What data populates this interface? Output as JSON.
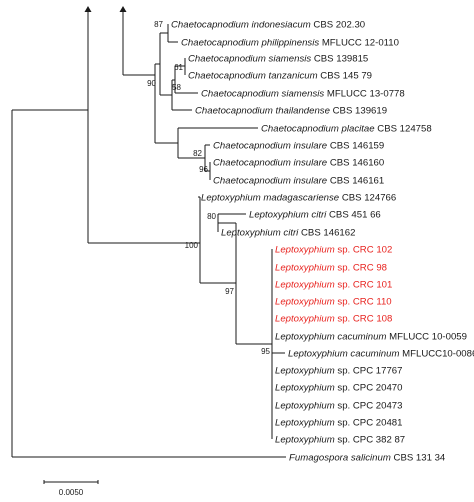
{
  "colors": {
    "line": "#1a1a1a",
    "text": "#1a1a1a",
    "highlight": "#e8231f"
  },
  "taxa": [
    {
      "id": "t01",
      "species": "Chaetocapnodium indonesiacum",
      "voucher": "CBS 202.30",
      "highlight": false
    },
    {
      "id": "t02",
      "species": "Chaetocapnodium philippinensis",
      "voucher": "MFLUCC 12-0110",
      "highlight": false
    },
    {
      "id": "t03",
      "species": "Chaetocapnodium siamensis",
      "voucher": "CBS 139815",
      "highlight": false
    },
    {
      "id": "t04",
      "species": "Chaetocapnodium tanzanicum",
      "voucher": "CBS 145 79",
      "highlight": false
    },
    {
      "id": "t05",
      "species": "Chaetocapnodium siamensis",
      "voucher": "MFLUCC 13-0778",
      "highlight": false
    },
    {
      "id": "t06",
      "species": "Chaetocapnodium thailandense",
      "voucher": "CBS 139619",
      "highlight": false
    },
    {
      "id": "t07",
      "species": "Chaetocapnodium placitae",
      "voucher": "CBS 124758",
      "highlight": false
    },
    {
      "id": "t08",
      "species": "Chaetocapnodium insulare",
      "voucher": "CBS 146159",
      "highlight": false
    },
    {
      "id": "t09",
      "species": "Chaetocapnodium insulare",
      "voucher": "CBS 146160",
      "highlight": false
    },
    {
      "id": "t10",
      "species": "Chaetocapnodium insulare",
      "voucher": "CBS 146161",
      "highlight": false
    },
    {
      "id": "t11",
      "species": "Leptoxyphium madagascariense",
      "voucher": "CBS 124766",
      "highlight": false
    },
    {
      "id": "t12",
      "species": "Leptoxyphium citri",
      "voucher": "CBS 451 66",
      "highlight": false
    },
    {
      "id": "t13",
      "species": "Leptoxyphium citri",
      "voucher": "CBS 146162",
      "highlight": false
    },
    {
      "id": "t14",
      "species": "Leptoxyphium",
      "voucher": "sp. CRC 102",
      "highlight": true
    },
    {
      "id": "t15",
      "species": "Leptoxyphium",
      "voucher": "sp. CRC 98",
      "highlight": true
    },
    {
      "id": "t16",
      "species": "Leptoxyphium",
      "voucher": "sp. CRC 101",
      "highlight": true
    },
    {
      "id": "t17",
      "species": "Leptoxyphium",
      "voucher": "sp. CRC 110",
      "highlight": true
    },
    {
      "id": "t18",
      "species": "Leptoxyphium",
      "voucher": "sp. CRC 108",
      "highlight": true
    },
    {
      "id": "t19",
      "species": "Leptoxyphium cacuminum",
      "voucher": "MFLUCC 10-0059",
      "highlight": false
    },
    {
      "id": "t20",
      "species": "Leptoxyphium cacuminum",
      "voucher": "MFLUCC10-0086",
      "highlight": false
    },
    {
      "id": "t21",
      "species": "Leptoxyphium",
      "voucher": "sp. CPC 17767",
      "highlight": false
    },
    {
      "id": "t22",
      "species": "Leptoxyphium",
      "voucher": "sp. CPC 20470",
      "highlight": false
    },
    {
      "id": "t23",
      "species": "Leptoxyphium",
      "voucher": "sp. CPC 20473",
      "highlight": false
    },
    {
      "id": "t24",
      "species": "Leptoxyphium",
      "voucher": "sp. CPC 20481",
      "highlight": false
    },
    {
      "id": "t25",
      "species": "Leptoxyphium",
      "voucher": "sp. CPC 382 87",
      "highlight": false
    },
    {
      "id": "t26",
      "species": "Fumagospora salicinum",
      "voucher": "CBS 131 34",
      "highlight": false
    }
  ],
  "supports": [
    {
      "id": "s87",
      "text": "87"
    },
    {
      "id": "s61",
      "text": "61"
    },
    {
      "id": "s90",
      "text": "90"
    },
    {
      "id": "s58",
      "text": "58"
    },
    {
      "id": "s82",
      "text": "82"
    },
    {
      "id": "s96",
      "text": "96"
    },
    {
      "id": "s80",
      "text": "80"
    },
    {
      "id": "s100",
      "text": "100"
    },
    {
      "id": "s97",
      "text": "97"
    },
    {
      "id": "s95",
      "text": "95"
    }
  ],
  "scale_bar": {
    "label": "0.0050"
  }
}
